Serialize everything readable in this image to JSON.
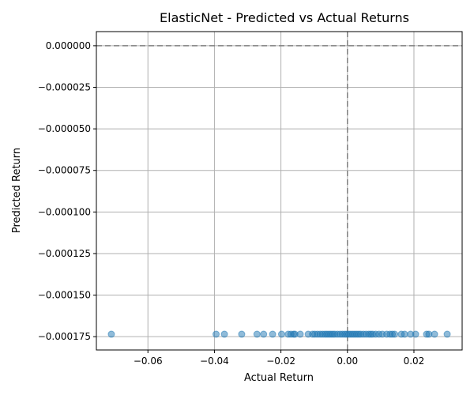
{
  "chart_data": {
    "type": "scatter",
    "title": "ElasticNet - Predicted vs Actual Returns",
    "xlabel": "Actual Return",
    "ylabel": "Predicted Return",
    "xlim": [
      -0.0755,
      0.0345
    ],
    "ylim": [
      -0.000183,
      8.5e-06
    ],
    "xticks": [
      -0.06,
      -0.04,
      -0.02,
      0.0,
      0.02
    ],
    "xtick_labels": [
      "−0.06",
      "−0.04",
      "−0.02",
      "0.00",
      "0.02"
    ],
    "yticks": [
      0.0,
      -2.5e-05,
      -5e-05,
      -7.5e-05,
      -0.0001,
      -0.000125,
      -0.00015,
      -0.000175
    ],
    "ytick_labels": [
      "0.000000",
      "−0.000025",
      "−0.000050",
      "−0.000075",
      "−0.000100",
      "−0.000125",
      "−0.000150",
      "−0.000175"
    ],
    "grid": true,
    "reference_lines": {
      "x": 0.0,
      "y": 0.0,
      "style": "dashed",
      "color": "#808080"
    },
    "marker_color": "#1f77b4",
    "marker_alpha": 0.5,
    "points": [
      {
        "x": -0.071,
        "y": -0.0001735
      },
      {
        "x": -0.0395,
        "y": -0.0001735
      },
      {
        "x": -0.037,
        "y": -0.0001735
      },
      {
        "x": -0.0318,
        "y": -0.0001735
      },
      {
        "x": -0.0272,
        "y": -0.0001735
      },
      {
        "x": -0.0252,
        "y": -0.0001735
      },
      {
        "x": -0.0225,
        "y": -0.0001735
      },
      {
        "x": -0.0198,
        "y": -0.0001735
      },
      {
        "x": -0.0178,
        "y": -0.0001735
      },
      {
        "x": -0.017,
        "y": -0.0001735
      },
      {
        "x": -0.0162,
        "y": -0.0001735
      },
      {
        "x": -0.0158,
        "y": -0.0001735
      },
      {
        "x": -0.0142,
        "y": -0.0001735
      },
      {
        "x": -0.0118,
        "y": -0.0001735
      },
      {
        "x": -0.0105,
        "y": -0.0001735
      },
      {
        "x": -0.0098,
        "y": -0.0001735
      },
      {
        "x": -0.009,
        "y": -0.0001735
      },
      {
        "x": -0.0082,
        "y": -0.0001735
      },
      {
        "x": -0.0075,
        "y": -0.0001735
      },
      {
        "x": -0.0068,
        "y": -0.0001735
      },
      {
        "x": -0.0062,
        "y": -0.0001735
      },
      {
        "x": -0.0056,
        "y": -0.0001735
      },
      {
        "x": -0.005,
        "y": -0.0001735
      },
      {
        "x": -0.0044,
        "y": -0.0001735
      },
      {
        "x": -0.0038,
        "y": -0.0001735
      },
      {
        "x": -0.003,
        "y": -0.0001735
      },
      {
        "x": -0.0022,
        "y": -0.0001735
      },
      {
        "x": -0.0015,
        "y": -0.0001735
      },
      {
        "x": -0.0008,
        "y": -0.0001735
      },
      {
        "x": -0.0002,
        "y": -0.0001735
      },
      {
        "x": 0.0004,
        "y": -0.0001735
      },
      {
        "x": 0.001,
        "y": -0.0001735
      },
      {
        "x": 0.0016,
        "y": -0.0001735
      },
      {
        "x": 0.0022,
        "y": -0.0001735
      },
      {
        "x": 0.0028,
        "y": -0.0001735
      },
      {
        "x": 0.0034,
        "y": -0.0001735
      },
      {
        "x": 0.004,
        "y": -0.0001735
      },
      {
        "x": 0.0048,
        "y": -0.0001735
      },
      {
        "x": 0.0056,
        "y": -0.0001735
      },
      {
        "x": 0.0064,
        "y": -0.0001735
      },
      {
        "x": 0.007,
        "y": -0.0001735
      },
      {
        "x": 0.0076,
        "y": -0.0001735
      },
      {
        "x": 0.0085,
        "y": -0.0001735
      },
      {
        "x": 0.0095,
        "y": -0.0001735
      },
      {
        "x": 0.0105,
        "y": -0.0001735
      },
      {
        "x": 0.0118,
        "y": -0.0001735
      },
      {
        "x": 0.0128,
        "y": -0.0001735
      },
      {
        "x": 0.0135,
        "y": -0.0001735
      },
      {
        "x": 0.0142,
        "y": -0.0001735
      },
      {
        "x": 0.0162,
        "y": -0.0001735
      },
      {
        "x": 0.0172,
        "y": -0.0001735
      },
      {
        "x": 0.019,
        "y": -0.0001735
      },
      {
        "x": 0.0205,
        "y": -0.0001735
      },
      {
        "x": 0.0238,
        "y": -0.0001735
      },
      {
        "x": 0.0245,
        "y": -0.0001735
      },
      {
        "x": 0.0262,
        "y": -0.0001735
      },
      {
        "x": 0.03,
        "y": -0.0001735
      }
    ]
  }
}
